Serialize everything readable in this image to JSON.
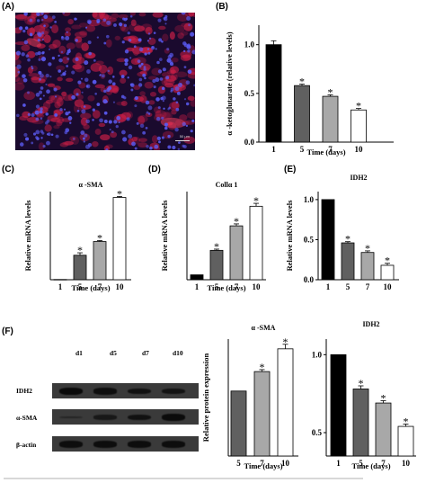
{
  "panels": {
    "A": {
      "label": "(A)",
      "scale_text": "50 μm"
    },
    "B": {
      "label": "(B)"
    },
    "C": {
      "label": "(C)"
    },
    "D": {
      "label": "(D)"
    },
    "E": {
      "label": "(E)"
    },
    "F": {
      "label": "(F)"
    }
  },
  "blot": {
    "lanes": [
      "d1",
      "d5",
      "d7",
      "d10"
    ],
    "rows": [
      "IDH2",
      "α-SMA",
      "β-actin"
    ],
    "band_intensity": {
      "IDH2": [
        1.0,
        0.85,
        0.75,
        0.7
      ],
      "α-SMA": [
        0.15,
        0.55,
        0.75,
        0.95
      ],
      "β-actin": [
        0.9,
        0.9,
        0.9,
        0.9
      ]
    }
  },
  "chart_data": [
    {
      "id": "B",
      "type": "bar",
      "categories": [
        "1",
        "5",
        "7",
        "10"
      ],
      "values": [
        1.0,
        0.58,
        0.47,
        0.33
      ],
      "errors": [
        0.04,
        0.015,
        0.015,
        0.015
      ],
      "significant": [
        false,
        true,
        true,
        true
      ],
      "ylim": [
        0.0,
        1.2
      ],
      "yticks": [
        "0.0",
        "0.5",
        "1.0"
      ],
      "ytick_values": [
        0,
        0.5,
        1.0
      ],
      "title": "",
      "xlabel": "Time (days)",
      "ylabel": "α -ketoglutarate (relative levels)",
      "colors": [
        "#000000",
        "#606060",
        "#a8a8a8",
        "#ffffff"
      ]
    },
    {
      "id": "C",
      "type": "bar",
      "categories": [
        "1",
        "5",
        "7",
        "10"
      ],
      "values": [
        0.5,
        50,
        78,
        168
      ],
      "errors": [
        0,
        5,
        2,
        2
      ],
      "significant": [
        false,
        true,
        true,
        true
      ],
      "ylim": [
        0,
        180
      ],
      "yticks": [],
      "ytick_values": [],
      "title": "α -SMA",
      "xlabel": "Time (days)",
      "ylabel": "Relative mRNA levels",
      "colors": [
        "#000000",
        "#606060",
        "#a8a8a8",
        "#ffffff"
      ]
    },
    {
      "id": "D",
      "type": "bar",
      "categories": [
        "1",
        "5",
        "7",
        "10"
      ],
      "values": [
        1,
        6,
        11,
        15
      ],
      "errors": [
        0,
        0.25,
        0.4,
        0.6
      ],
      "significant": [
        false,
        true,
        true,
        true
      ],
      "ylim": [
        0,
        18
      ],
      "yticks": [],
      "ytick_values": [],
      "title": "Collα 1",
      "xlabel": "Time (days)",
      "ylabel": "Relative mRNA levels",
      "colors": [
        "#000000",
        "#606060",
        "#a8a8a8",
        "#ffffff"
      ]
    },
    {
      "id": "E",
      "type": "bar",
      "categories": [
        "1",
        "5",
        "7",
        "10"
      ],
      "values": [
        1.0,
        0.46,
        0.34,
        0.18
      ],
      "errors": [
        0,
        0.015,
        0.02,
        0.025
      ],
      "significant": [
        false,
        true,
        true,
        true
      ],
      "ylim": [
        0,
        1.1
      ],
      "yticks": [
        "0.0",
        "0.5",
        "1.0"
      ],
      "ytick_values": [
        0,
        0.5,
        1.0
      ],
      "title": "IDH2",
      "xlabel": "",
      "ylabel": "Relative mRNA levels",
      "colors": [
        "#000000",
        "#606060",
        "#a8a8a8",
        "#ffffff"
      ]
    },
    {
      "id": "F-SMA",
      "type": "bar",
      "categories": [
        "5",
        "7",
        "10"
      ],
      "values": [
        1.0,
        1.3,
        1.65
      ],
      "errors": [
        0,
        0.03,
        0.07
      ],
      "significant": [
        false,
        true,
        true
      ],
      "ylim": [
        0,
        1.8
      ],
      "yticks": [],
      "ytick_values": [],
      "title": "α -SMA",
      "xlabel": "Time (days)",
      "ylabel": "Relative protein expression",
      "colors": [
        "#606060",
        "#a8a8a8",
        "#ffffff"
      ]
    },
    {
      "id": "F-IDH2",
      "type": "bar",
      "categories": [
        "1",
        "5",
        "7",
        "10"
      ],
      "values": [
        1.0,
        0.78,
        0.69,
        0.54
      ],
      "errors": [
        0,
        0.02,
        0.015,
        0.015
      ],
      "significant": [
        false,
        true,
        true,
        true
      ],
      "ylim": [
        0.35,
        1.1
      ],
      "yticks": [
        "0.5",
        "1.0"
      ],
      "ytick_values": [
        0.5,
        1.0
      ],
      "title": "IDH2",
      "xlabel": "Time (days)",
      "ylabel": "",
      "colors": [
        "#000000",
        "#606060",
        "#a8a8a8",
        "#ffffff"
      ]
    }
  ]
}
